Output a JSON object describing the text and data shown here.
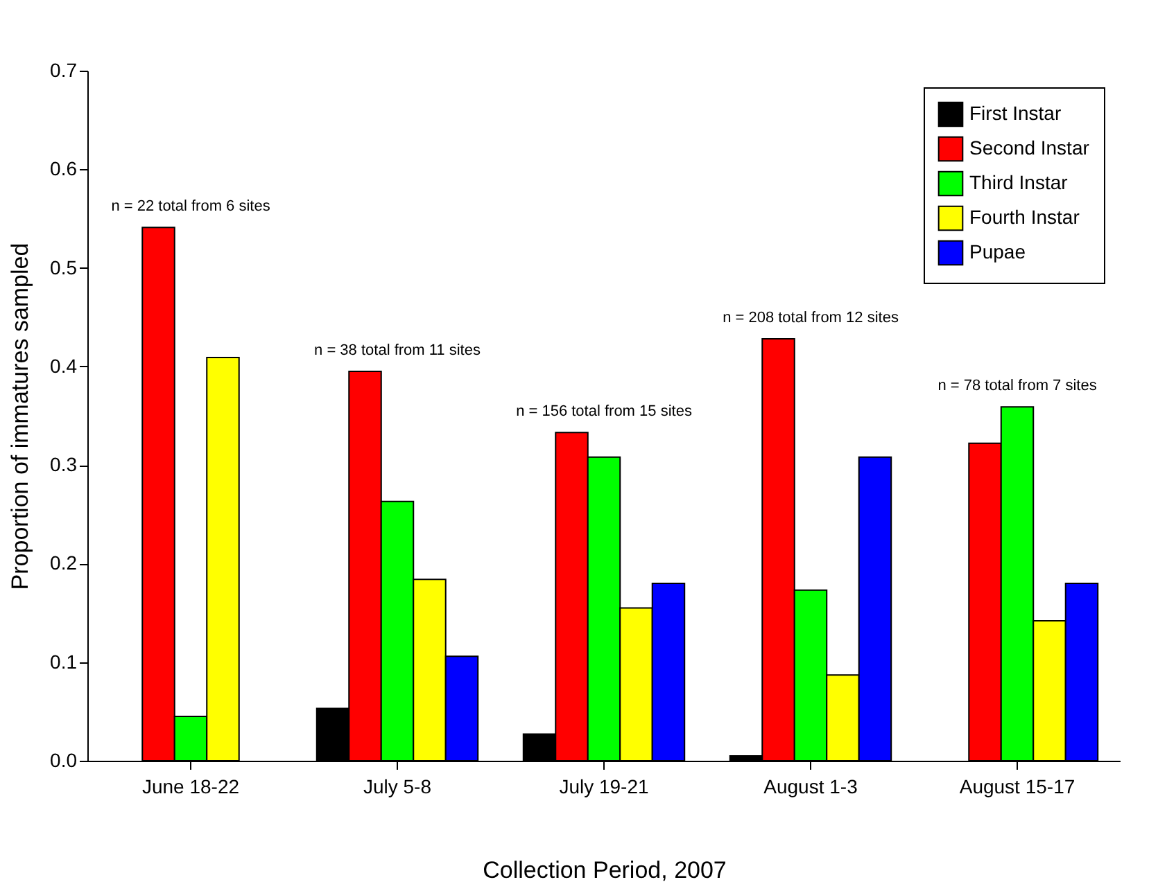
{
  "chart_data": {
    "type": "bar",
    "xlabel": "Collection Period, 2007",
    "ylabel": "Proportion of immatures sampled",
    "categories": [
      "June 18-22",
      "July 5-8",
      "July 19-21",
      "August 1-3",
      "August 15-17"
    ],
    "series": [
      {
        "name": "First Instar",
        "color": "#000000",
        "values": [
          null,
          0.053,
          0.027,
          0.005,
          null
        ]
      },
      {
        "name": "Second Instar",
        "color": "#ff0000",
        "values": [
          0.541,
          0.395,
          0.333,
          0.428,
          0.322
        ]
      },
      {
        "name": "Third Instar",
        "color": "#00ff00",
        "values": [
          0.045,
          0.263,
          0.308,
          0.173,
          0.359
        ]
      },
      {
        "name": "Fourth Instar",
        "color": "#ffff00",
        "values": [
          0.409,
          0.184,
          0.155,
          0.087,
          0.142
        ]
      },
      {
        "name": "Pupae",
        "color": "#0000ff",
        "values": [
          null,
          0.106,
          0.18,
          0.308,
          0.18
        ]
      }
    ],
    "ylim": [
      0,
      0.7
    ],
    "yticks": [
      {
        "value": 0,
        "label": "0.0"
      },
      0.1,
      0.2,
      0.3,
      0.4,
      0.5,
      0.6,
      0.7
    ],
    "annotations": [
      "n = 22 total from 6 sites",
      "n = 38 total from 11 sites",
      "n = 156 total from 15 sites",
      "n = 208 total from 12 sites",
      "n = 78 total from 7 sites"
    ],
    "grid": false,
    "legend": "top right"
  }
}
